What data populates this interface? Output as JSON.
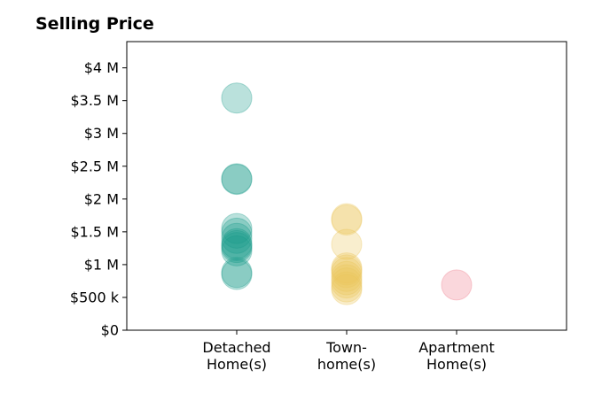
{
  "chart_data": {
    "type": "scatter",
    "title": "Selling Price",
    "xlabel": "",
    "ylabel": "",
    "ylim": [
      0,
      4400000
    ],
    "grid": false,
    "categories": [
      [
        "Detached",
        "Home(s)"
      ],
      [
        "Town-",
        "home(s)"
      ],
      [
        "Apartment",
        "Home(s)"
      ]
    ],
    "y_ticks": [
      {
        "value": 0,
        "label": "$0"
      },
      {
        "value": 500000,
        "label": "$500 k"
      },
      {
        "value": 1000000,
        "label": "$1 M"
      },
      {
        "value": 1500000,
        "label": "$1.5 M"
      },
      {
        "value": 2000000,
        "label": "$2 M"
      },
      {
        "value": 2500000,
        "label": "$2.5 M"
      },
      {
        "value": 3000000,
        "label": "$3 M"
      },
      {
        "value": 3500000,
        "label": "$3.5 M"
      },
      {
        "value": 4000000,
        "label": "$4 M"
      }
    ],
    "series": [
      {
        "category_index": 0,
        "color": "#1a9c8a",
        "values": [
          3540000,
          2310000,
          2300000,
          1550000,
          1480000,
          1400000,
          1320000,
          1290000,
          1260000,
          1210000,
          880000,
          850000
        ]
      },
      {
        "category_index": 1,
        "color": "#eac75c",
        "values": [
          1700000,
          1680000,
          1310000,
          950000,
          920000,
          880000,
          820000,
          770000,
          720000,
          660000,
          620000
        ]
      },
      {
        "category_index": 2,
        "color": "#ef7b8a",
        "values": [
          690000
        ]
      }
    ]
  }
}
